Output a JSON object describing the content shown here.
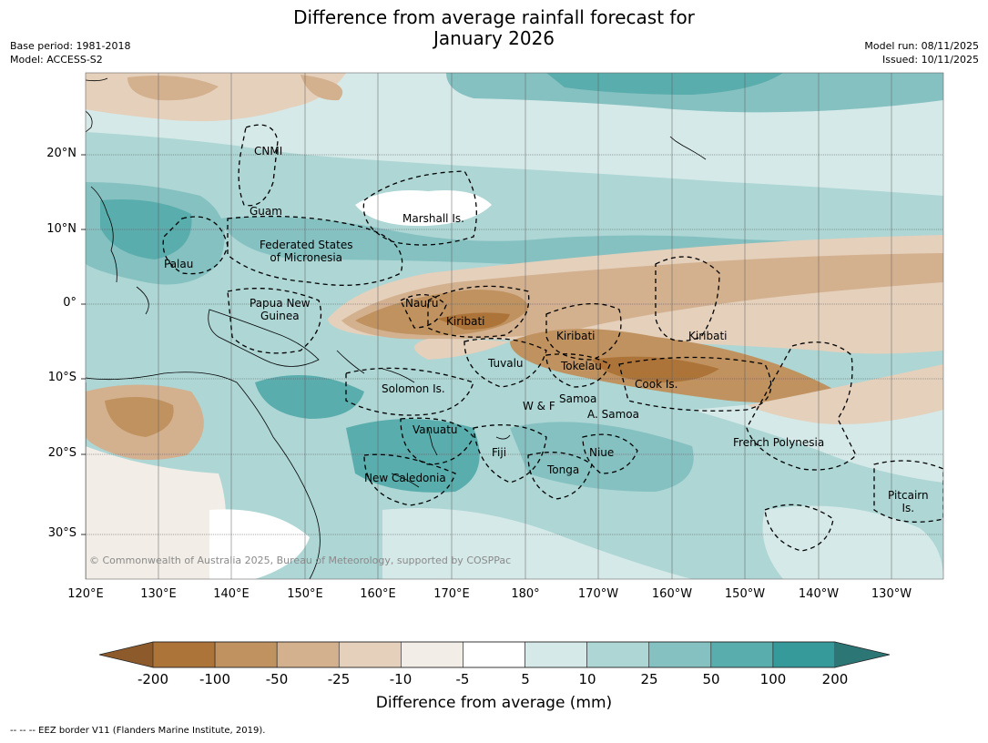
{
  "title": {
    "line1": "Difference from average rainfall forecast for",
    "line2": "January 2026"
  },
  "meta_left": {
    "base_period": "Base period: 1981-2018",
    "model": "Model: ACCESS-S2"
  },
  "meta_right": {
    "model_run": "Model run: 08/11/2025",
    "issued": "Issued: 10/11/2025"
  },
  "map": {
    "lat_ticks": [
      "20°N",
      "10°N",
      "0°",
      "10°S",
      "20°S",
      "30°S"
    ],
    "lon_ticks": [
      "120°E",
      "130°E",
      "140°E",
      "150°E",
      "160°E",
      "170°E",
      "180°",
      "170°W",
      "160°W",
      "150°W",
      "140°W",
      "130°W"
    ],
    "places": {
      "cnmi": "CNMI",
      "guam": "Guam",
      "marshall": "Marshall Is.",
      "fsm_line1": "Federated States",
      "fsm_line2": "of Micronesia",
      "palau": "Palau",
      "png_line1": "Papua New",
      "png_line2": "Guinea",
      "nauru": "Nauru",
      "kiribati_west": "Kiribati",
      "kiribati_central": "Kiribati",
      "kiribati_east": "Kiribati",
      "tuvalu": "Tuvalu",
      "tokelau": "Tokelau",
      "cook": "Cook Is.",
      "solomon": "Solomon Is.",
      "samoa": "Samoa",
      "wallis": "W & F",
      "amsamoa": "A. Samoa",
      "vanuatu": "Vanuatu",
      "fiji": "Fiji",
      "niue": "Niue",
      "tonga": "Tonga",
      "newcal": "New Caledonia",
      "frpoly": "French Polynesia",
      "pitcairn_line1": "Pitcairn",
      "pitcairn_line2": "Is."
    },
    "copyright": "© Commonwealth of Australia 2025, Bureau of Meteorology, supported by COSPPac"
  },
  "colorbar": {
    "ticks": [
      "-200",
      "-100",
      "-50",
      "-25",
      "-10",
      "-5",
      "5",
      "10",
      "25",
      "50",
      "100",
      "200"
    ],
    "colors": {
      "below_min": "#8c5a2b",
      "bins": [
        "#ad743a",
        "#c0925f",
        "#d3b08e",
        "#e5d0bc",
        "#f2ede6",
        "#ffffff",
        "#d5e9e8",
        "#add6d5",
        "#85c1c1",
        "#5aadad",
        "#36999a"
      ],
      "above_max": "#2c7676"
    },
    "label": "Difference from average (mm)"
  },
  "footnote": "--  --  -- EEZ border V11 (Flanders Marine Institute, 2019)."
}
